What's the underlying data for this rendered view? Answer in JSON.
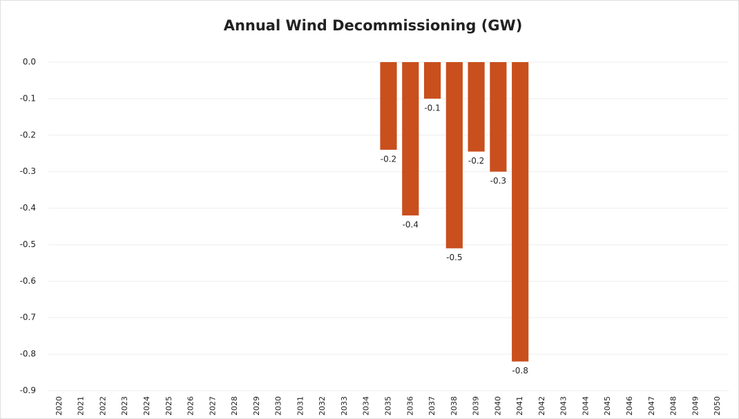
{
  "chart_data": {
    "type": "bar",
    "title": "Annual Wind Decommissioning (GW)",
    "categories": [
      "2020",
      "2021",
      "2022",
      "2023",
      "2024",
      "2025",
      "2026",
      "2027",
      "2028",
      "2029",
      "2030",
      "2031",
      "2032",
      "2033",
      "2034",
      "2035",
      "2036",
      "2037",
      "2038",
      "2039",
      "2040",
      "2041",
      "2042",
      "2043",
      "2044",
      "2045",
      "2046",
      "2047",
      "2048",
      "2049",
      "2050"
    ],
    "values": [
      null,
      null,
      null,
      null,
      null,
      null,
      null,
      null,
      null,
      null,
      null,
      null,
      null,
      null,
      null,
      -0.24,
      -0.42,
      -0.1,
      -0.51,
      -0.245,
      -0.3,
      -0.82,
      null,
      null,
      null,
      null,
      null,
      null,
      null,
      null,
      null
    ],
    "value_labels": [
      null,
      null,
      null,
      null,
      null,
      null,
      null,
      null,
      null,
      null,
      null,
      null,
      null,
      null,
      null,
      "-0.2",
      "-0.4",
      "-0.1",
      "-0.5",
      "-0.2",
      "-0.3",
      "-0.8",
      null,
      null,
      null,
      null,
      null,
      null,
      null,
      null,
      null
    ],
    "color": "#c94f1d",
    "ylim": [
      -0.9,
      0
    ],
    "yticks": [
      {
        "value": 0,
        "label": "0.0"
      },
      {
        "value": -0.1,
        "label": "-0.1"
      },
      {
        "value": -0.2,
        "label": "-0.2"
      },
      {
        "value": -0.3,
        "label": "-0.3"
      },
      {
        "value": -0.4,
        "label": "-0.4"
      },
      {
        "value": -0.5,
        "label": "-0.5"
      },
      {
        "value": -0.6,
        "label": "-0.6"
      },
      {
        "value": -0.7,
        "label": "-0.7"
      },
      {
        "value": -0.8,
        "label": "-0.8"
      },
      {
        "value": -0.9,
        "label": "-0.9"
      }
    ],
    "grid": true
  }
}
